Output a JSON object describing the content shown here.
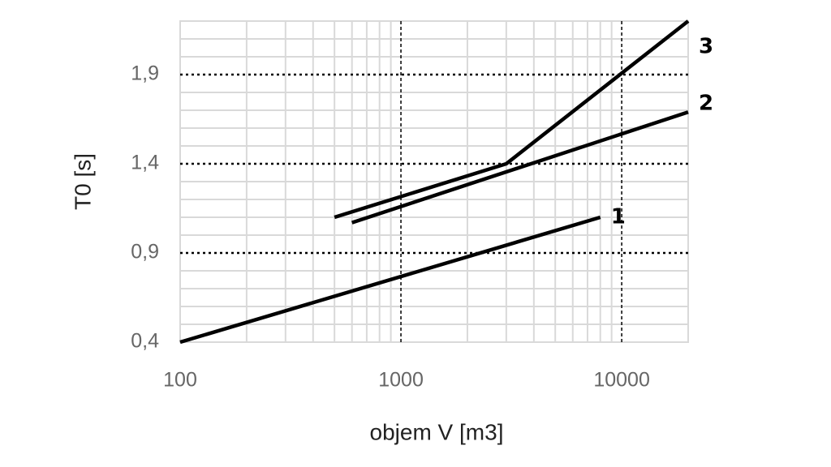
{
  "chart_data": {
    "type": "line",
    "x_label": "objem V [m3]",
    "y_label": "T0 [s]",
    "xscale": "log",
    "xlim": [
      100,
      20000
    ],
    "xticks": [
      100,
      1000,
      10000
    ],
    "xminor": [
      200,
      300,
      400,
      500,
      600,
      700,
      800,
      900,
      2000,
      3000,
      4000,
      5000,
      6000,
      7000,
      8000,
      9000
    ],
    "ylim": [
      0.4,
      2.2
    ],
    "yticks": [
      {
        "value": 0.4,
        "label": "0,4"
      },
      {
        "value": 0.9,
        "label": "0,9"
      },
      {
        "value": 1.4,
        "label": "1,4"
      },
      {
        "value": 1.9,
        "label": "1,9"
      }
    ],
    "yminor": [
      0.5,
      0.6,
      0.7,
      0.8,
      1.0,
      1.1,
      1.2,
      1.3,
      1.5,
      1.6,
      1.7,
      1.8,
      2.0,
      2.1
    ],
    "grid": true,
    "series": [
      {
        "name": "1",
        "color": "#000000",
        "x": [
          100,
          8000
        ],
        "values": [
          0.4,
          1.1
        ]
      },
      {
        "name": "2",
        "color": "#000000",
        "x": [
          600,
          20000
        ],
        "values": [
          1.07,
          1.69
        ]
      },
      {
        "name": "3",
        "color": "#000000",
        "x": [
          500,
          3000,
          20000
        ],
        "values": [
          1.1,
          1.4,
          2.2
        ]
      }
    ]
  }
}
